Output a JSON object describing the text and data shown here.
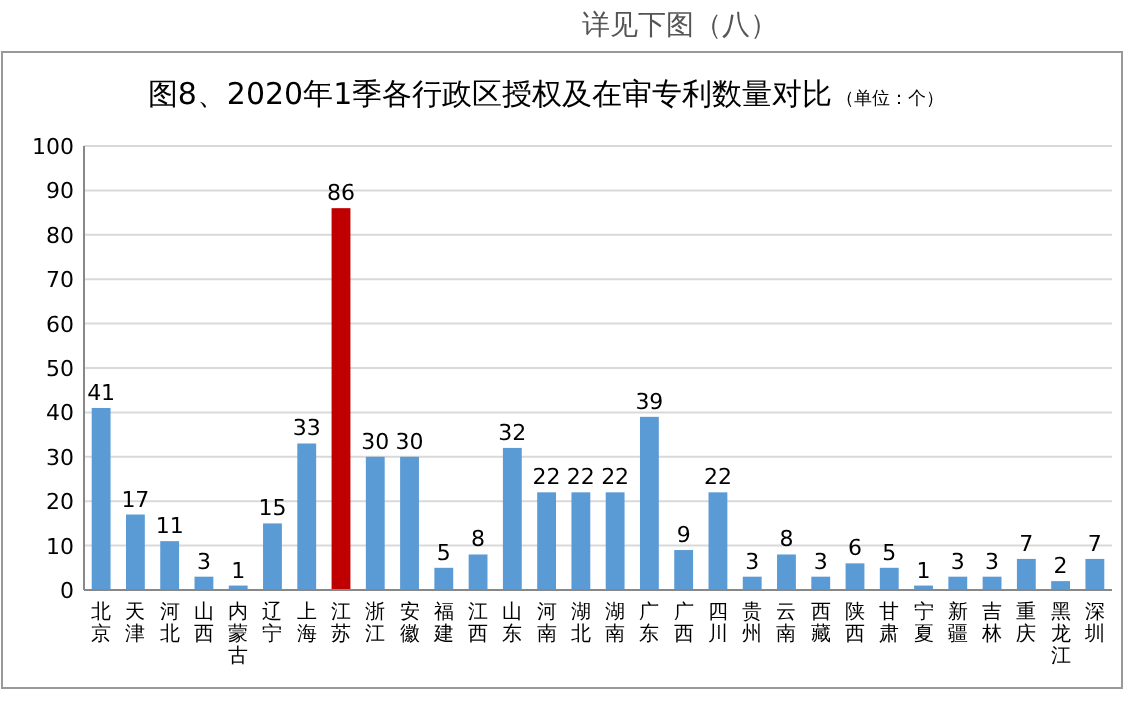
{
  "chart_data": {
    "type": "bar",
    "title": "图8、2020年1季各行政区授权及在审专利数量对比",
    "annotations": [
      "详见下图（八）",
      "（单位：个）"
    ],
    "categories": [
      "北京",
      "天津",
      "河北",
      "山西",
      "内蒙古",
      "辽宁",
      "上海",
      "江苏",
      "浙江",
      "安徽",
      "福建",
      "江西",
      "山东",
      "河南",
      "湖北",
      "湖南",
      "广东",
      "广西",
      "四川",
      "贵州",
      "云南",
      "西藏",
      "陕西",
      "甘肃",
      "宁夏",
      "新疆",
      "吉林",
      "重庆",
      "黑龙江",
      "深圳"
    ],
    "values": [
      41,
      17,
      11,
      3,
      1,
      15,
      33,
      86,
      30,
      30,
      5,
      8,
      32,
      22,
      22,
      22,
      39,
      9,
      22,
      3,
      8,
      3,
      6,
      5,
      1,
      3,
      3,
      7,
      2,
      7
    ],
    "colors": [
      "#5b9bd5",
      "#5b9bd5",
      "#5b9bd5",
      "#5b9bd5",
      "#5b9bd5",
      "#5b9bd5",
      "#5b9bd5",
      "#c00000",
      "#5b9bd5",
      "#5b9bd5",
      "#5b9bd5",
      "#5b9bd5",
      "#5b9bd5",
      "#5b9bd5",
      "#5b9bd5",
      "#5b9bd5",
      "#5b9bd5",
      "#5b9bd5",
      "#5b9bd5",
      "#5b9bd5",
      "#5b9bd5",
      "#5b9bd5",
      "#5b9bd5",
      "#5b9bd5",
      "#5b9bd5",
      "#5b9bd5",
      "#5b9bd5",
      "#5b9bd5",
      "#5b9bd5",
      "#5b9bd5"
    ],
    "ylim": [
      0,
      100
    ],
    "yticks": [
      0,
      10,
      20,
      30,
      40,
      50,
      60,
      70,
      80,
      90,
      100
    ],
    "grid": true,
    "data_labels": true
  }
}
